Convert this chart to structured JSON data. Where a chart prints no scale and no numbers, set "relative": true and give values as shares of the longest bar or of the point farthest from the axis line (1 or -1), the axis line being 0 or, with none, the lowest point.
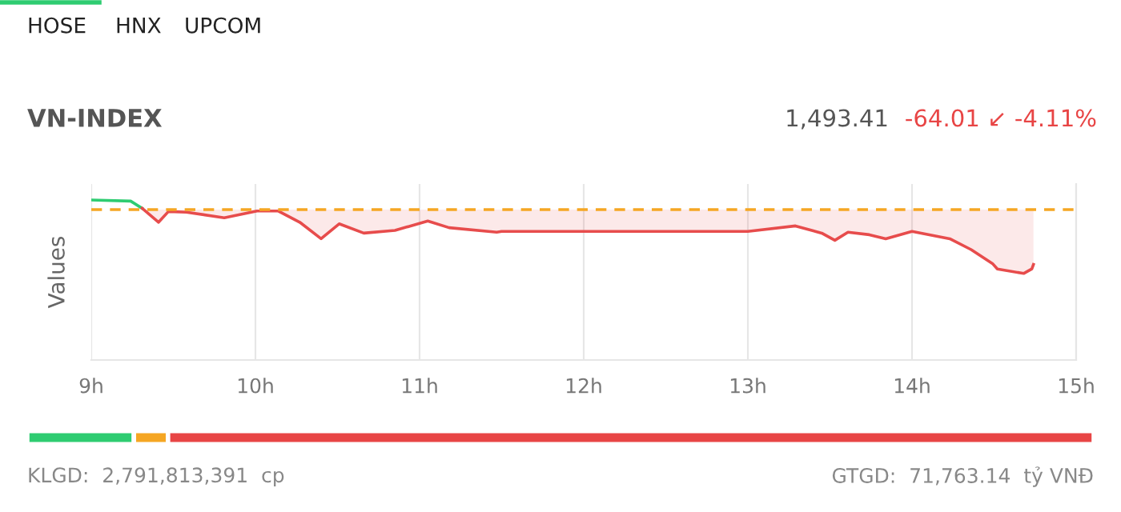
{
  "chart_data": [
    {
      "type": "line",
      "title": "VN-INDEX",
      "ylabel": "Values",
      "relative": true,
      "grid": "x",
      "legend": false,
      "annotations": [
        "HOSE",
        "HNX",
        "UPCOM",
        "1,493.41",
        "-64.01 ↙ -4.11%"
      ],
      "xlim": [
        9,
        15
      ],
      "xticks": [
        {
          "value": 9,
          "label": "9h"
        },
        {
          "value": 10,
          "label": "10h"
        },
        {
          "value": 11,
          "label": "11h"
        },
        {
          "value": 12,
          "label": "12h"
        },
        {
          "value": 13,
          "label": "13h"
        },
        {
          "value": 14,
          "label": "14h"
        },
        {
          "value": 15,
          "label": "15h"
        }
      ],
      "ref_lines": [
        {
          "axis": "y",
          "value": 0.94,
          "color": "#f5a623",
          "line_style": "dashed"
        }
      ],
      "series": [
        {
          "type": "line",
          "color": "#2ecc71",
          "x": [
            9.0,
            9.24,
            9.31
          ],
          "values": [
            1.0,
            0.993,
            0.948
          ]
        },
        {
          "type": "line",
          "color": "#e74c4c",
          "upper": [
            0.94,
            0.94,
            0.94,
            0.94,
            0.94,
            0.94,
            0.94,
            0.94,
            0.94,
            0.94,
            0.94,
            0.94,
            0.94,
            0.94,
            0.94,
            0.94,
            0.94,
            0.94,
            0.94,
            0.94,
            0.94,
            0.94,
            0.94,
            0.94,
            0.94,
            0.94,
            0.94,
            0.94,
            0.94,
            0.94,
            0.94
          ],
          "lower": [
            0.948,
            0.861,
            0.928,
            0.924,
            0.889,
            0.931,
            0.931,
            0.861,
            0.758,
            0.851,
            0.793,
            0.81,
            0.869,
            0.827,
            0.799,
            0.804,
            0.804,
            0.838,
            0.793,
            0.748,
            0.799,
            0.783,
            0.758,
            0.804,
            0.758,
            0.69,
            0.603,
            0.569,
            0.541,
            0.569,
            0.597
          ],
          "x": [
            9.31,
            9.41,
            9.47,
            9.58,
            9.81,
            10.01,
            10.14,
            10.27,
            10.4,
            10.51,
            10.66,
            10.85,
            11.05,
            11.18,
            11.47,
            11.5,
            13.0,
            13.29,
            13.45,
            13.53,
            13.61,
            13.74,
            13.84,
            14.0,
            14.23,
            14.36,
            14.49,
            14.52,
            14.68,
            14.73,
            14.74
          ],
          "values": [
            0.948,
            0.861,
            0.928,
            0.924,
            0.889,
            0.931,
            0.931,
            0.861,
            0.758,
            0.851,
            0.793,
            0.81,
            0.869,
            0.827,
            0.799,
            0.804,
            0.804,
            0.838,
            0.793,
            0.748,
            0.799,
            0.783,
            0.758,
            0.804,
            0.758,
            0.69,
            0.603,
            0.569,
            0.541,
            0.569,
            0.597
          ]
        }
      ]
    },
    {
      "type": "bar",
      "orientation": "horizontal",
      "stacked": true,
      "relative": true,
      "categories": [
        null
      ],
      "annotations": [
        "KLGD:  2,791,813,391  cp",
        "GTGD:  71,763.14  tỷ VNĐ"
      ],
      "series": [
        {
          "color": "#2ecc71",
          "values": [
            0.1
          ]
        },
        {
          "color": "#f5a623",
          "values": [
            0.032
          ]
        },
        {
          "color": "#e84545",
          "values": [
            0.868
          ]
        }
      ]
    }
  ]
}
